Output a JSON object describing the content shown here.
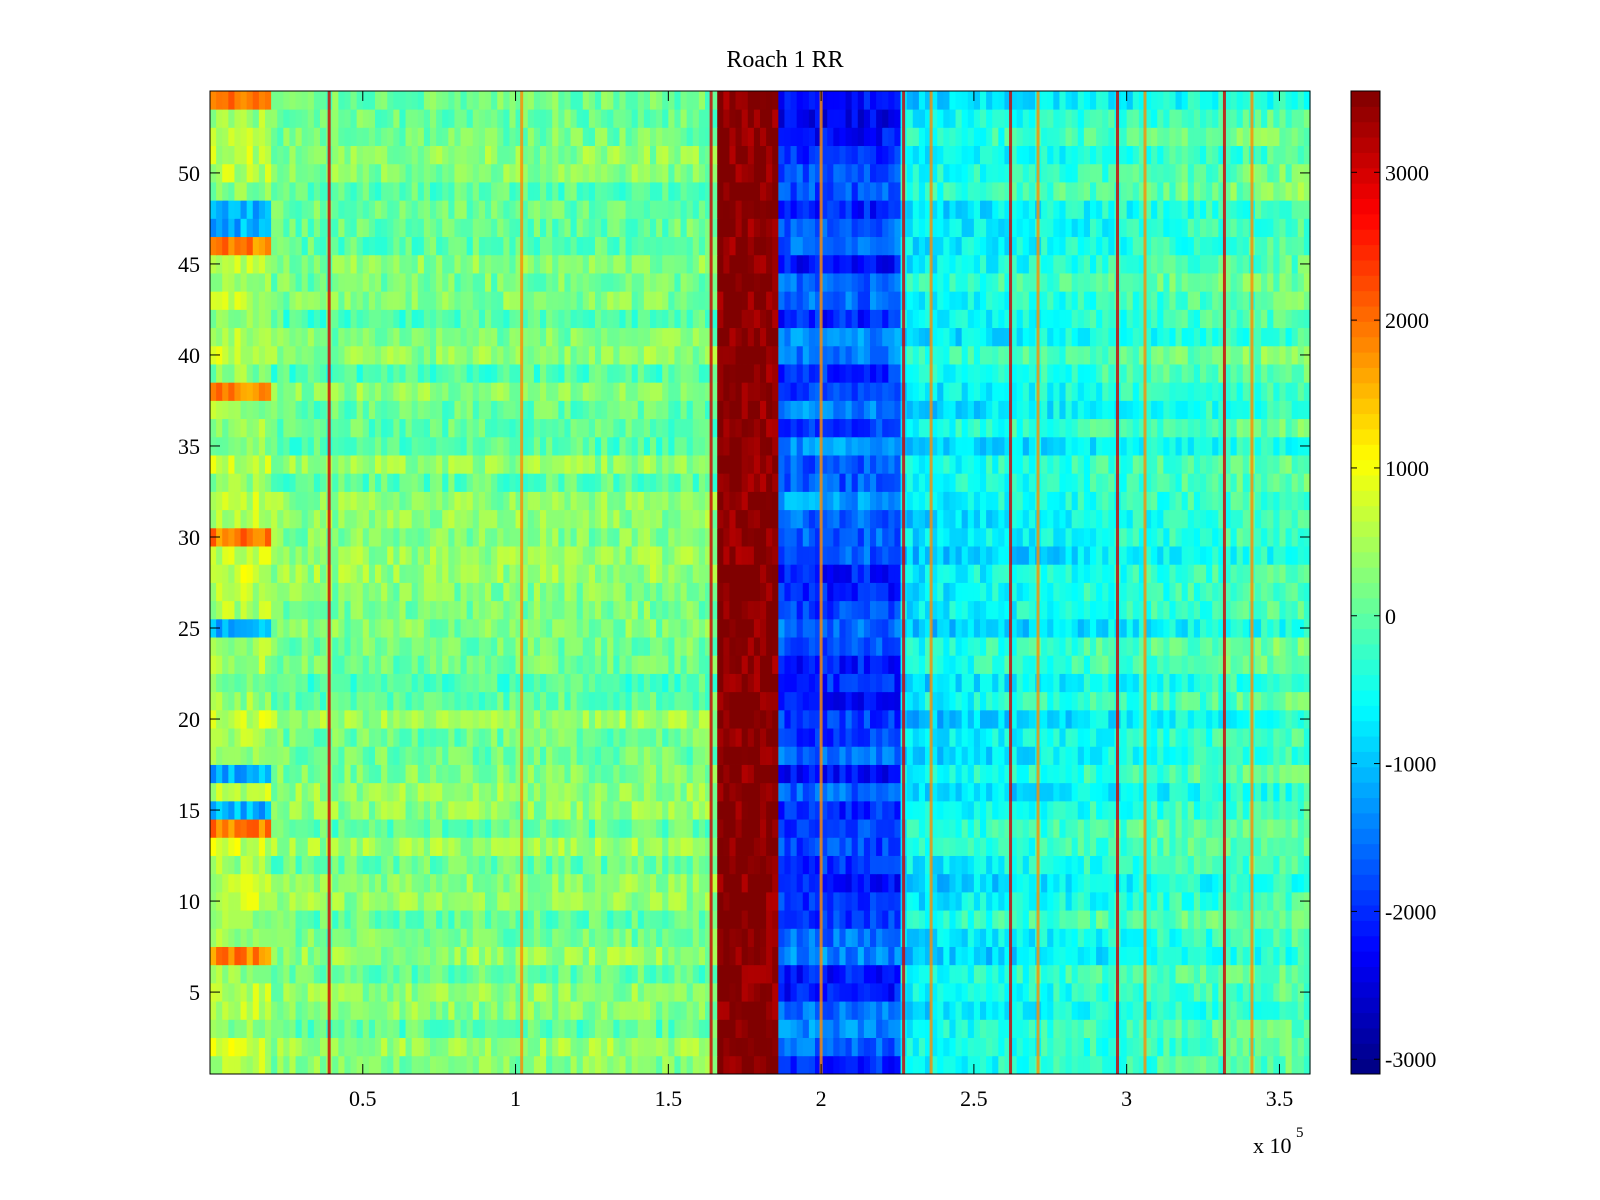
{
  "chart_data": {
    "type": "heatmap",
    "title": "Roach 1 RR",
    "xlabel": "",
    "ylabel": "",
    "x_exponent_label": {
      "base": "x 10",
      "exponent": "5"
    },
    "xlim": [
      0,
      3.6
    ],
    "ylim": [
      0.5,
      54.5
    ],
    "x_ticks": [
      0.5,
      1,
      1.5,
      2,
      2.5,
      3,
      3.5
    ],
    "x_tick_labels": [
      "0.5",
      "1",
      "1.5",
      "2",
      "2.5",
      "3",
      "3.5"
    ],
    "y_ticks": [
      5,
      10,
      15,
      20,
      25,
      30,
      35,
      40,
      45,
      50
    ],
    "y_tick_labels": [
      "5",
      "10",
      "15",
      "20",
      "25",
      "30",
      "35",
      "40",
      "45",
      "50"
    ],
    "rows": 54,
    "colormap": "jet",
    "clim": [
      -3100,
      3550
    ],
    "colorbar": {
      "ticks": [
        -3000,
        -2000,
        -1000,
        0,
        1000,
        2000,
        3000
      ],
      "tick_labels": [
        "-3000",
        "-2000",
        "-1000",
        "0",
        "1000",
        "2000",
        "3000"
      ]
    },
    "saturated_band": {
      "x_start": 1.67,
      "x_end": 1.87,
      "value": 3550
    },
    "vertical_line_x": [
      0.39,
      1.02,
      1.64,
      2.0,
      2.27,
      2.36,
      2.62,
      2.71,
      2.97,
      3.06,
      3.32,
      3.41
    ]
  }
}
